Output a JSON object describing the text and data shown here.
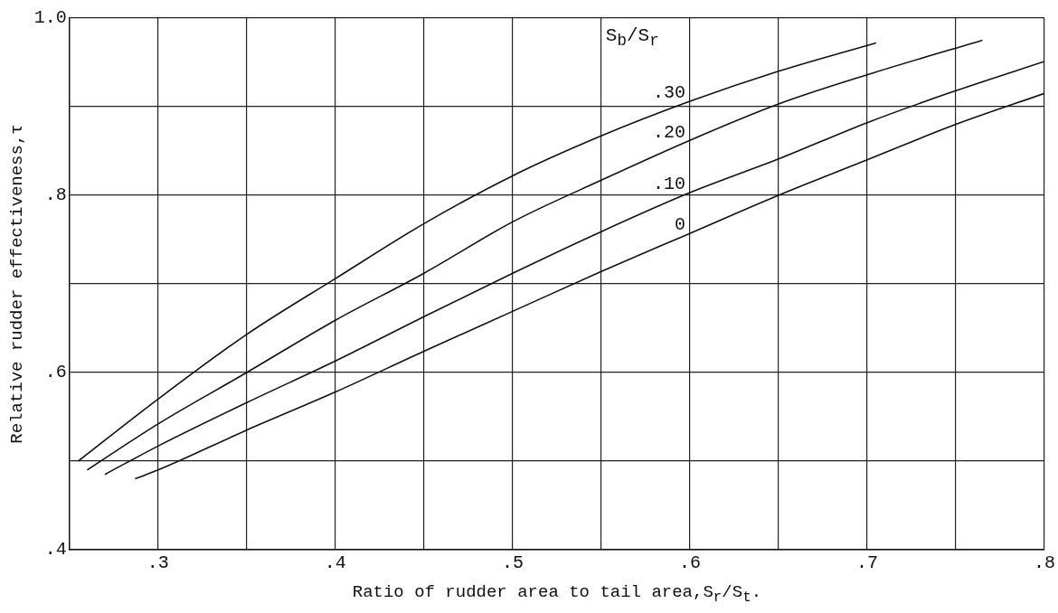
{
  "chart_data": {
    "type": "line",
    "xlabel": "Ratio of rudder area to tail area,S$_{r}$/S$_{t}$.",
    "ylabel": "Relative rudder effectiveness,τ",
    "legend_title": "S$_{b}$/S$_{r}$",
    "xlim": [
      0.25,
      0.8
    ],
    "ylim": [
      0.4,
      1.0
    ],
    "xticks": [
      {
        "value": 0.3,
        "label": ".3"
      },
      {
        "value": 0.35,
        "label": null
      },
      {
        "value": 0.4,
        "label": ".4"
      },
      {
        "value": 0.45,
        "label": null
      },
      {
        "value": 0.5,
        "label": ".5"
      },
      {
        "value": 0.55,
        "label": null
      },
      {
        "value": 0.6,
        "label": ".6"
      },
      {
        "value": 0.65,
        "label": null
      },
      {
        "value": 0.7,
        "label": ".7"
      },
      {
        "value": 0.75,
        "label": null
      },
      {
        "value": 0.8,
        "label": ".8"
      }
    ],
    "yticks": [
      {
        "value": 0.4,
        "label": ".4"
      },
      {
        "value": 0.5,
        "label": null
      },
      {
        "value": 0.6,
        "label": ".6"
      },
      {
        "value": 0.7,
        "label": null
      },
      {
        "value": 0.8,
        "label": ".8"
      },
      {
        "value": 0.9,
        "label": null
      },
      {
        "value": 1.0,
        "label": "1.0"
      }
    ],
    "grid": true,
    "legend": false,
    "marker": "none",
    "line_style": "solid",
    "series": [
      {
        "name": ".30",
        "color": "#111111",
        "x": [
          0.255,
          0.3,
          0.35,
          0.4,
          0.45,
          0.5,
          0.55,
          0.6,
          0.65,
          0.705
        ],
        "values": [
          0.5,
          0.57,
          0.643,
          0.706,
          0.768,
          0.822,
          0.867,
          0.906,
          0.94,
          0.972
        ]
      },
      {
        "name": ".20",
        "color": "#111111",
        "x": [
          0.26,
          0.3,
          0.35,
          0.4,
          0.45,
          0.5,
          0.55,
          0.6,
          0.65,
          0.7,
          0.765
        ],
        "values": [
          0.49,
          0.542,
          0.6,
          0.659,
          0.712,
          0.77,
          0.817,
          0.862,
          0.903,
          0.936,
          0.975
        ]
      },
      {
        "name": ".10",
        "color": "#111111",
        "x": [
          0.27,
          0.3,
          0.35,
          0.4,
          0.45,
          0.5,
          0.55,
          0.6,
          0.65,
          0.7,
          0.75,
          0.8
        ],
        "values": [
          0.485,
          0.517,
          0.566,
          0.613,
          0.663,
          0.712,
          0.759,
          0.803,
          0.841,
          0.882,
          0.918,
          0.951
        ]
      },
      {
        "name": "0",
        "color": "#111111",
        "x": [
          0.287,
          0.3,
          0.35,
          0.4,
          0.45,
          0.5,
          0.55,
          0.6,
          0.65,
          0.7,
          0.75,
          0.8
        ],
        "values": [
          0.48,
          0.49,
          0.535,
          0.578,
          0.624,
          0.669,
          0.714,
          0.757,
          0.8,
          0.84,
          0.88,
          0.915
        ]
      }
    ]
  }
}
